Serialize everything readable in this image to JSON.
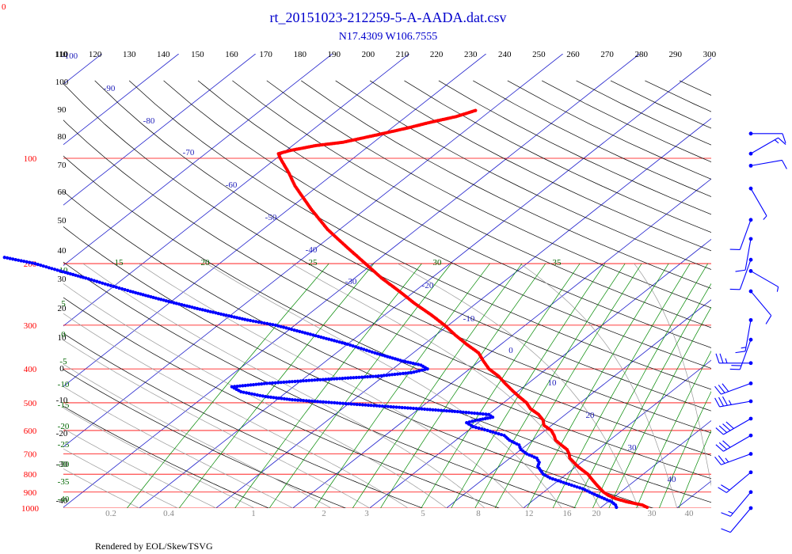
{
  "corner_label": "0",
  "footer": "Rendered by EOL/SkewTSVG",
  "colors": {
    "title": "#0000cc",
    "isobar": "#ff0000",
    "isotherm": "#2222cc",
    "dry_adiabat": "#000000",
    "moist_adiabat": "#999999",
    "mixing_ratio": "#008800",
    "temperature": "#ff0000",
    "dewpoint": "#0000ff",
    "wind": "#0000ff"
  },
  "chart_data": {
    "type": "skew-t",
    "title": "rt_20151023-212259-5-A-AADA.dat.csv",
    "subtitle": "N17.4309 W106.7555",
    "pressure_range_hpa": [
      1000,
      100
    ],
    "top_axis_ticks": [
      "110",
      "120",
      "130",
      "140",
      "150",
      "160",
      "170",
      "180",
      "190",
      "200",
      "210",
      "220",
      "230",
      "240",
      "250",
      "260",
      "270",
      "280",
      "290",
      "300"
    ],
    "pressure_levels": [
      "100",
      "200",
      "300",
      "400",
      "500",
      "600",
      "700",
      "800",
      "900",
      "1000"
    ],
    "isotherm_labels": [
      "-100",
      "-90",
      "-80",
      "-70",
      "-60",
      "-50",
      "-40",
      "-30",
      "-20",
      "-10",
      "0",
      "10",
      "20",
      "30",
      "40"
    ],
    "dry_adiabat_labels": [
      "70",
      "80",
      "90",
      "100",
      "110",
      "40",
      "50",
      "60",
      "30",
      "20",
      "10",
      "0",
      "-10",
      "-20",
      "-30",
      "-40"
    ],
    "mixing_ratio_labels": [
      "0.2",
      "0.4",
      "1",
      "2",
      "3",
      "5",
      "8",
      "12",
      "16",
      "20"
    ],
    "moist_adiabat_labels": [
      "10",
      "5",
      "0",
      "-5",
      "-10",
      "-15",
      "-20",
      "-25",
      "-30",
      "-35",
      "-40"
    ],
    "wet_bulb_labels": [
      "15",
      "20",
      "25",
      "30",
      "35"
    ],
    "bottom_temp_labels": [
      "20",
      "30",
      "40"
    ],
    "temperature_profile": [
      {
        "p": 995,
        "t": 26.0
      },
      {
        "p": 980,
        "t": 25.0
      },
      {
        "p": 960,
        "t": 22.5
      },
      {
        "p": 940,
        "t": 20.5
      },
      {
        "p": 920,
        "t": 19.0
      },
      {
        "p": 900,
        "t": 17.8
      },
      {
        "p": 880,
        "t": 16.8
      },
      {
        "p": 860,
        "t": 15.8
      },
      {
        "p": 840,
        "t": 14.8
      },
      {
        "p": 820,
        "t": 13.8
      },
      {
        "p": 800,
        "t": 12.8
      },
      {
        "p": 780,
        "t": 11.5
      },
      {
        "p": 760,
        "t": 10.2
      },
      {
        "p": 740,
        "t": 9.0
      },
      {
        "p": 720,
        "t": 7.8
      },
      {
        "p": 700,
        "t": 7.0
      },
      {
        "p": 680,
        "t": 6.0
      },
      {
        "p": 660,
        "t": 4.5
      },
      {
        "p": 640,
        "t": 3.0
      },
      {
        "p": 620,
        "t": 2.0
      },
      {
        "p": 600,
        "t": 0.8
      },
      {
        "p": 580,
        "t": -1.0
      },
      {
        "p": 560,
        "t": -2.0
      },
      {
        "p": 540,
        "t": -3.5
      },
      {
        "p": 520,
        "t": -5.5
      },
      {
        "p": 500,
        "t": -7.0
      },
      {
        "p": 480,
        "t": -9.0
      },
      {
        "p": 460,
        "t": -11.0
      },
      {
        "p": 440,
        "t": -13.0
      },
      {
        "p": 420,
        "t": -15.0
      },
      {
        "p": 400,
        "t": -17.5
      },
      {
        "p": 380,
        "t": -19.5
      },
      {
        "p": 360,
        "t": -21.5
      },
      {
        "p": 340,
        "t": -24.5
      },
      {
        "p": 320,
        "t": -27.5
      },
      {
        "p": 300,
        "t": -30.5
      },
      {
        "p": 280,
        "t": -34.0
      },
      {
        "p": 260,
        "t": -38.0
      },
      {
        "p": 240,
        "t": -42.0
      },
      {
        "p": 220,
        "t": -46.5
      },
      {
        "p": 200,
        "t": -51.0
      },
      {
        "p": 180,
        "t": -56.0
      },
      {
        "p": 160,
        "t": -61.5
      },
      {
        "p": 140,
        "t": -67.0
      },
      {
        "p": 120,
        "t": -73.0
      },
      {
        "p": 110,
        "t": -76.0
      },
      {
        "p": 100,
        "t": -79.5
      },
      {
        "p": 97,
        "t": -80.5
      },
      {
        "p": 95,
        "t": -79.5
      },
      {
        "p": 92,
        "t": -77.0
      },
      {
        "p": 90,
        "t": -74.0
      },
      {
        "p": 86,
        "t": -71.0
      },
      {
        "p": 82,
        "t": -68.0
      },
      {
        "p": 79,
        "t": -66.0
      },
      {
        "p": 76,
        "t": -63.5
      },
      {
        "p": 73,
        "t": -62.0
      }
    ],
    "dewpoint_profile": [
      {
        "p": 995,
        "t": 22.0
      },
      {
        "p": 980,
        "t": 21.5
      },
      {
        "p": 960,
        "t": 20.5
      },
      {
        "p": 940,
        "t": 19.0
      },
      {
        "p": 920,
        "t": 17.5
      },
      {
        "p": 900,
        "t": 16.0
      },
      {
        "p": 880,
        "t": 14.5
      },
      {
        "p": 860,
        "t": 12.5
      },
      {
        "p": 840,
        "t": 10.5
      },
      {
        "p": 820,
        "t": 8.5
      },
      {
        "p": 800,
        "t": 7.0
      },
      {
        "p": 780,
        "t": 6.0
      },
      {
        "p": 760,
        "t": 5.0
      },
      {
        "p": 740,
        "t": 4.5
      },
      {
        "p": 720,
        "t": 3.5
      },
      {
        "p": 700,
        "t": 1.5
      },
      {
        "p": 680,
        "t": 0.0
      },
      {
        "p": 660,
        "t": -1.0
      },
      {
        "p": 640,
        "t": -3.0
      },
      {
        "p": 620,
        "t": -4.5
      },
      {
        "p": 600,
        "t": -7.5
      },
      {
        "p": 585,
        "t": -10.0
      },
      {
        "p": 570,
        "t": -11.5
      },
      {
        "p": 560,
        "t": -10.5
      },
      {
        "p": 550,
        "t": -9.0
      },
      {
        "p": 540,
        "t": -10.0
      },
      {
        "p": 530,
        "t": -14.5
      },
      {
        "p": 520,
        "t": -20.0
      },
      {
        "p": 510,
        "t": -26.0
      },
      {
        "p": 500,
        "t": -32.0
      },
      {
        "p": 490,
        "t": -38.0
      },
      {
        "p": 480,
        "t": -42.0
      },
      {
        "p": 465,
        "t": -46.0
      },
      {
        "p": 450,
        "t": -48.0
      },
      {
        "p": 440,
        "t": -44.0
      },
      {
        "p": 430,
        "t": -38.0
      },
      {
        "p": 420,
        "t": -31.0
      },
      {
        "p": 410,
        "t": -27.0
      },
      {
        "p": 400,
        "t": -25.5
      },
      {
        "p": 390,
        "t": -27.0
      },
      {
        "p": 380,
        "t": -30.0
      },
      {
        "p": 360,
        "t": -35.0
      },
      {
        "p": 340,
        "t": -40.0
      },
      {
        "p": 320,
        "t": -46.0
      },
      {
        "p": 300,
        "t": -52.5
      },
      {
        "p": 290,
        "t": -57.0
      },
      {
        "p": 280,
        "t": -61.0
      },
      {
        "p": 270,
        "t": -65.0
      },
      {
        "p": 260,
        "t": -69.0
      },
      {
        "p": 250,
        "t": -73.0
      },
      {
        "p": 240,
        "t": -77.0
      },
      {
        "p": 230,
        "t": -81.0
      },
      {
        "p": 220,
        "t": -85.0
      },
      {
        "p": 210,
        "t": -89.5
      },
      {
        "p": 200,
        "t": -94.0
      },
      {
        "p": 192,
        "t": -99.0
      }
    ],
    "wind_barbs": [
      {
        "p": 85,
        "dir": 270,
        "spd": 10
      },
      {
        "p": 97,
        "dir": 240,
        "spd": 15
      },
      {
        "p": 105,
        "dir": 260,
        "spd": 10
      },
      {
        "p": 122,
        "dir": 330,
        "spd": 5
      },
      {
        "p": 150,
        "dir": 20,
        "spd": 10
      },
      {
        "p": 170,
        "dir": 10,
        "spd": 10
      },
      {
        "p": 195,
        "dir": 20,
        "spd": 10
      },
      {
        "p": 210,
        "dir": 300,
        "spd": 5
      },
      {
        "p": 240,
        "dir": 320,
        "spd": 10
      },
      {
        "p": 290,
        "dir": 10,
        "spd": 15
      },
      {
        "p": 330,
        "dir": 20,
        "spd": 20
      },
      {
        "p": 385,
        "dir": 90,
        "spd": 25
      },
      {
        "p": 440,
        "dir": 70,
        "spd": 30
      },
      {
        "p": 495,
        "dir": 80,
        "spd": 35
      },
      {
        "p": 555,
        "dir": 60,
        "spd": 40
      },
      {
        "p": 620,
        "dir": 60,
        "spd": 30
      },
      {
        "p": 700,
        "dir": 70,
        "spd": 25
      },
      {
        "p": 790,
        "dir": 50,
        "spd": 20
      },
      {
        "p": 900,
        "dir": 40,
        "spd": 15
      },
      {
        "p": 1000,
        "dir": 40,
        "spd": 10
      }
    ]
  }
}
